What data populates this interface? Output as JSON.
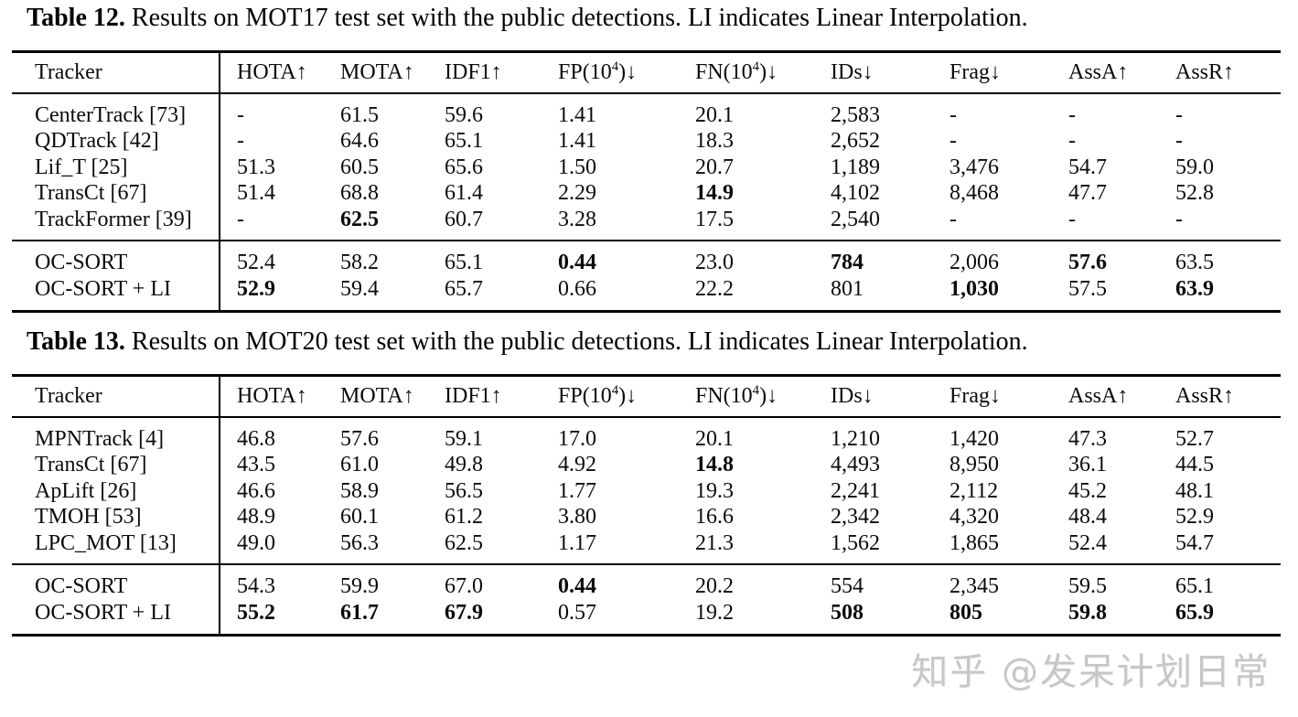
{
  "page": {
    "background": "#ffffff",
    "text_color": "#000000"
  },
  "watermark": {
    "text": "知乎 @发呆计划日常",
    "color": "#c7c7c7"
  },
  "tables": [
    {
      "caption_label": "Table 12.",
      "caption_rest": " Results on MOT17 test set with the public detections. LI indicates Linear Interpolation.",
      "header": [
        [
          "Tracker",
          "HOTA↑",
          "MOTA↑",
          "IDF1↑",
          {
            "t": "FP(10",
            "sup": "4",
            "post": ")↓"
          },
          {
            "t": "FN(10",
            "sup": "4",
            "post": ")↓"
          },
          "IDs↓",
          "Frag↓",
          "AssA↑",
          "AssR↑"
        ]
      ],
      "rows": [
        [
          "CenterTrack [73]",
          "-",
          "61.5",
          "59.6",
          "1.41",
          "20.1",
          "2,583",
          "-",
          "-",
          "-"
        ],
        [
          "QDTrack [42]",
          "-",
          "64.6",
          "65.1",
          "1.41",
          "18.3",
          "2,652",
          "-",
          "-",
          "-"
        ],
        [
          "Lif_T [25]",
          "51.3",
          "60.5",
          "65.6",
          "1.50",
          "20.7",
          "1,189",
          "3,476",
          "54.7",
          "59.0"
        ],
        [
          "TransCt [67]",
          "51.4",
          "68.8",
          "61.4",
          "2.29",
          {
            "t": "14.9",
            "b": true
          },
          "4,102",
          "8,468",
          "47.7",
          "52.8"
        ],
        [
          "TrackFormer [39]",
          "-",
          {
            "t": "62.5",
            "b": true
          },
          "60.7",
          "3.28",
          "17.5",
          "2,540",
          "-",
          "-",
          "-"
        ]
      ],
      "ours_rows": [
        [
          "OC-SORT",
          "52.4",
          "58.2",
          "65.1",
          {
            "t": "0.44",
            "b": true
          },
          "23.0",
          {
            "t": "784",
            "b": true
          },
          "2,006",
          {
            "t": "57.6",
            "b": true
          },
          "63.5"
        ],
        [
          "OC-SORT + LI",
          {
            "t": "52.9",
            "b": true
          },
          "59.4",
          "65.7",
          "0.66",
          "22.2",
          "801",
          {
            "t": "1,030",
            "b": true
          },
          "57.5",
          {
            "t": "63.9",
            "b": true
          }
        ]
      ]
    },
    {
      "caption_label": "Table 13.",
      "caption_rest": " Results on MOT20 test set with the public detections. LI indicates Linear Interpolation.",
      "header": [
        [
          "Tracker",
          "HOTA↑",
          "MOTA↑",
          "IDF1↑",
          {
            "t": "FP(10",
            "sup": "4",
            "post": ")↓"
          },
          {
            "t": "FN(10",
            "sup": "4",
            "post": ")↓"
          },
          "IDs↓",
          "Frag↓",
          "AssA↑",
          "AssR↑"
        ]
      ],
      "rows": [
        [
          "MPNTrack [4]",
          "46.8",
          "57.6",
          "59.1",
          "17.0",
          "20.1",
          "1,210",
          "1,420",
          "47.3",
          "52.7"
        ],
        [
          "TransCt [67]",
          "43.5",
          "61.0",
          "49.8",
          "4.92",
          {
            "t": "14.8",
            "b": true
          },
          "4,493",
          "8,950",
          "36.1",
          "44.5"
        ],
        [
          "ApLift [26]",
          "46.6",
          "58.9",
          "56.5",
          "1.77",
          "19.3",
          "2,241",
          "2,112",
          "45.2",
          "48.1"
        ],
        [
          "TMOH [53]",
          "48.9",
          "60.1",
          "61.2",
          "3.80",
          "16.6",
          "2,342",
          "4,320",
          "48.4",
          "52.9"
        ],
        [
          "LPC_MOT [13]",
          "49.0",
          "56.3",
          "62.5",
          "1.17",
          "21.3",
          "1,562",
          "1,865",
          "52.4",
          "54.7"
        ]
      ],
      "ours_rows": [
        [
          "OC-SORT",
          "54.3",
          "59.9",
          "67.0",
          {
            "t": "0.44",
            "b": true
          },
          "20.2",
          "554",
          "2,345",
          "59.5",
          "65.1"
        ],
        [
          "OC-SORT + LI",
          {
            "t": "55.2",
            "b": true
          },
          {
            "t": "61.7",
            "b": true
          },
          {
            "t": "67.9",
            "b": true
          },
          "0.57",
          "19.2",
          {
            "t": "508",
            "b": true
          },
          {
            "t": "805",
            "b": true
          },
          {
            "t": "59.8",
            "b": true
          },
          {
            "t": "65.9",
            "b": true
          }
        ]
      ]
    }
  ]
}
